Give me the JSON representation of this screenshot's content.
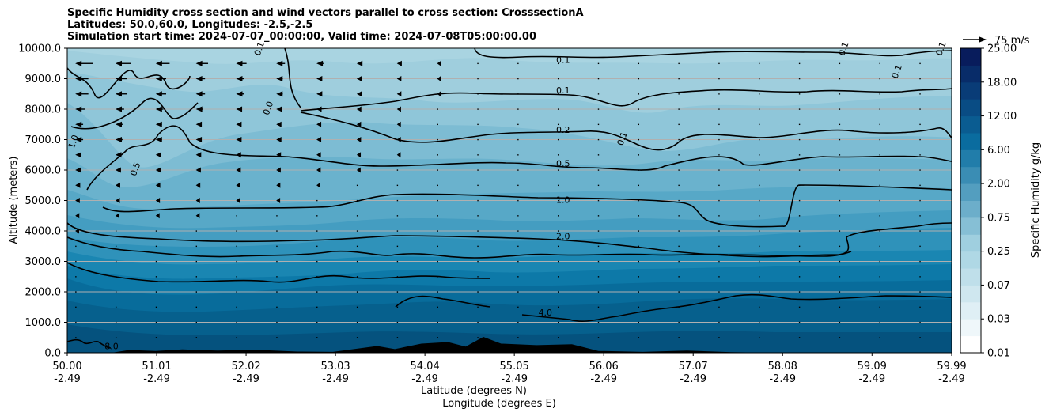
{
  "chart_data": {
    "type": "filled-contour cross section with wind vectors",
    "title_lines": [
      "Specific Humidity cross section and wind vectors parallel to cross section: CrosssectionA",
      "Latitudes: 50.0,60.0, Longitudes: -2.5,-2.5",
      "Simulation start time: 2024-07-07_00:00:00, Valid time: 2024-07-08T05:00:00.00"
    ],
    "ylabel": "Altitude (meters)",
    "xlabel_line1": "Latitude (degrees N)",
    "xlabel_line2": "Longitude (degrees E)",
    "ylim": [
      0,
      10000
    ],
    "xlim": [
      50.0,
      59.99
    ],
    "y_ticks": [
      "0.0",
      "1000.0",
      "2000.0",
      "3000.0",
      "4000.0",
      "5000.0",
      "6000.0",
      "7000.0",
      "8000.0",
      "9000.0",
      "10000.0"
    ],
    "x_ticks": [
      {
        "lat": "50.00",
        "lon": "-2.49"
      },
      {
        "lat": "51.01",
        "lon": "-2.49"
      },
      {
        "lat": "52.02",
        "lon": "-2.49"
      },
      {
        "lat": "53.03",
        "lon": "-2.49"
      },
      {
        "lat": "54.04",
        "lon": "-2.49"
      },
      {
        "lat": "55.05",
        "lon": "-2.49"
      },
      {
        "lat": "56.06",
        "lon": "-2.49"
      },
      {
        "lat": "57.07",
        "lon": "-2.49"
      },
      {
        "lat": "58.08",
        "lon": "-2.49"
      },
      {
        "lat": "59.09",
        "lon": "-2.49"
      },
      {
        "lat": "59.99",
        "lon": "-2.49"
      }
    ],
    "colorbar": {
      "label": "Specific Humidity g/kg",
      "tick_labels": [
        "0.01",
        "0.03",
        "0.07",
        "0.25",
        "0.75",
        "2.00",
        "6.00",
        "12.00",
        "18.00",
        "25.00"
      ],
      "n_levels": 18
    },
    "quiver_key": "75 m/s",
    "contour_levels": [
      {
        "label": "0.1",
        "altitude": 9600
      },
      {
        "label": "0.1",
        "altitude": 8600
      },
      {
        "label": "0.2",
        "altitude": 7300
      },
      {
        "label": "0.5",
        "altitude": 6200
      },
      {
        "label": "1.0",
        "altitude": 5000
      },
      {
        "label": "2.0",
        "altitude": 3800
      },
      {
        "label": "4.0",
        "altitude": 1300
      },
      {
        "label": "8.0",
        "altitude": 200
      }
    ],
    "side_labels": [
      {
        "label": "1.0",
        "lat": 50.1,
        "altitude": 6900
      },
      {
        "label": "0.5",
        "lat": 50.8,
        "altitude": 6000
      },
      {
        "label": "0.0",
        "lat": 52.3,
        "altitude": 8000
      },
      {
        "label": "0.1",
        "lat": 56.3,
        "altitude": 7000
      },
      {
        "label": "0.1",
        "lat": 59.4,
        "altitude": 9200
      },
      {
        "label": "0.1",
        "lat": 58.8,
        "altitude": 9950
      },
      {
        "label": "0.1",
        "lat": 59.9,
        "altitude": 9950
      },
      {
        "label": "0.1",
        "lat": 52.2,
        "altitude": 9950
      }
    ],
    "wind_rows": [
      9500,
      9000,
      8500,
      8000,
      7500,
      7000,
      6500,
      6000,
      5500,
      5000,
      4500,
      4000,
      3500,
      3000,
      2500,
      2000,
      1500,
      1000,
      500
    ],
    "wind_speed_by_row": [
      40,
      30,
      30,
      22,
      18,
      18,
      14,
      12,
      8,
      6,
      4,
      3,
      2,
      2,
      1,
      1,
      1,
      1,
      0
    ],
    "terrain_profile": [
      [
        50.5,
        0
      ],
      [
        50.7,
        90
      ],
      [
        51.0,
        60
      ],
      [
        51.3,
        110
      ],
      [
        51.7,
        70
      ],
      [
        52.1,
        100
      ],
      [
        52.6,
        40
      ],
      [
        53.0,
        30
      ],
      [
        53.5,
        220
      ],
      [
        53.7,
        120
      ],
      [
        54.0,
        300
      ],
      [
        54.3,
        350
      ],
      [
        54.5,
        200
      ],
      [
        54.7,
        520
      ],
      [
        54.9,
        300
      ],
      [
        55.3,
        250
      ],
      [
        55.7,
        280
      ],
      [
        56.0,
        60
      ],
      [
        56.5,
        30
      ],
      [
        57.0,
        70
      ],
      [
        57.5,
        20
      ],
      [
        58.0,
        0
      ]
    ]
  }
}
